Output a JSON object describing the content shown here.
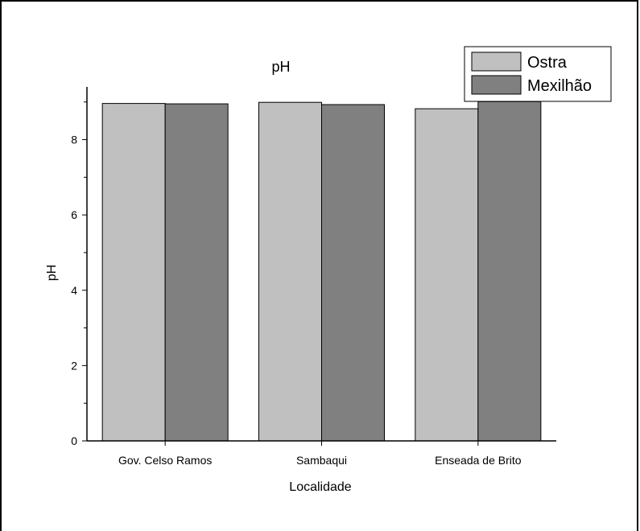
{
  "chart_data": {
    "type": "bar",
    "title": "pH",
    "xlabel": "Localidade",
    "ylabel": "pH",
    "categories": [
      "Gov. Celso Ramos",
      "Sambaqui",
      "Enseada de Brito"
    ],
    "series": [
      {
        "name": "Ostra",
        "values": [
          8.96,
          8.99,
          8.82
        ],
        "color": "#c0c0c0"
      },
      {
        "name": "Mexilhão",
        "values": [
          8.95,
          8.93,
          9.01
        ],
        "color": "#808080"
      }
    ],
    "ylim": [
      0,
      9.4
    ],
    "yticks": [
      "0",
      "2",
      "4",
      "6",
      "8"
    ],
    "grid": false,
    "legend_position": "top-right"
  }
}
